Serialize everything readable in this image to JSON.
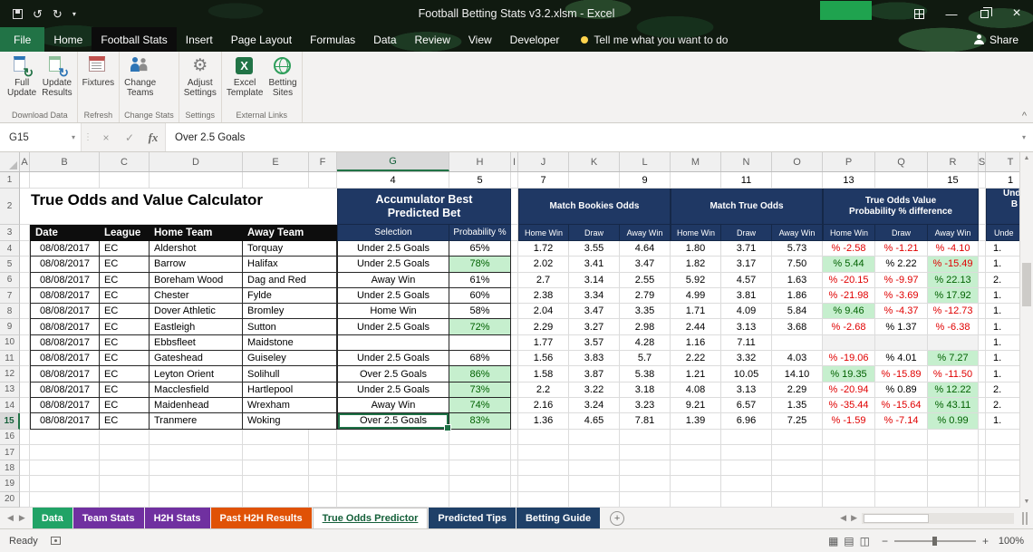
{
  "titlebar": {
    "title": "Football Betting Stats v3.2.xlsm - Excel"
  },
  "ribbon_tabs": [
    {
      "label": "File",
      "type": "file"
    },
    {
      "label": "Home"
    },
    {
      "label": "Football Stats",
      "type": "active"
    },
    {
      "label": "Insert"
    },
    {
      "label": "Page Layout"
    },
    {
      "label": "Formulas"
    },
    {
      "label": "Data"
    },
    {
      "label": "Review"
    },
    {
      "label": "View"
    },
    {
      "label": "Developer"
    }
  ],
  "tellme": "Tell me what you want to do",
  "share": "Share",
  "ribbon": {
    "groups": [
      {
        "label": "Download Data",
        "buttons": [
          {
            "label": "Full\nUpdate",
            "icon": "refresh-sheet-icon"
          },
          {
            "label": "Update\nResults",
            "icon": "refresh-results-icon"
          }
        ]
      },
      {
        "label": "Refresh",
        "buttons": [
          {
            "label": "Fixtures",
            "icon": "calendar-icon"
          }
        ]
      },
      {
        "label": "Change Stats",
        "buttons": [
          {
            "label": "Change\nTeams",
            "icon": "people-icon"
          }
        ]
      },
      {
        "label": "Settings",
        "buttons": [
          {
            "label": "Adjust\nSettings",
            "icon": "gear-icon"
          }
        ]
      },
      {
        "label": "External Links",
        "buttons": [
          {
            "label": "Excel\nTemplate",
            "icon": "excel-icon"
          },
          {
            "label": "Betting\nSites",
            "icon": "globe-icon"
          }
        ]
      }
    ]
  },
  "formula_bar": {
    "name_box": "G15",
    "content": "Over 2.5 Goals",
    "fx": "fx"
  },
  "grid": {
    "col_letters": [
      "A",
      "B",
      "C",
      "D",
      "E",
      "F",
      "G",
      "H",
      "I",
      "J",
      "K",
      "L",
      "M",
      "N",
      "O",
      "P",
      "Q",
      "R",
      "S",
      "T"
    ],
    "row_count": 20,
    "title": "True Odds and Value Calculator",
    "row1": {
      "G": "4",
      "H": "5",
      "J": "7",
      "L": "9",
      "N": "11",
      "P": "13",
      "R": "15",
      "T": "1"
    },
    "sections": {
      "accumulator": [
        "Accumulator Best",
        "Predicted Bet"
      ],
      "bookies": [
        "Match Bookies Odds"
      ],
      "true_odds": [
        "Match True Odds"
      ],
      "value": [
        "True Odds Value",
        "Probability % difference"
      ],
      "partial_right": [
        "Unde",
        "B"
      ]
    },
    "headers": {
      "date": "Date",
      "league": "League",
      "home": "Home Team",
      "away": "Away Team",
      "selection": "Selection",
      "probability": "Probability %",
      "home_win": "Home Win",
      "draw": "Draw",
      "away_win": "Away Win",
      "partial_right": "Unde"
    },
    "rows": [
      {
        "n": 4,
        "date": "08/08/2017",
        "league": "EC",
        "home": "Aldershot",
        "away": "Torquay",
        "selection": "Under 2.5 Goals",
        "prob": "65%",
        "prob_green": false,
        "bookies": [
          "1.72",
          "3.55",
          "4.64"
        ],
        "true_odds": [
          "1.80",
          "3.71",
          "5.73"
        ],
        "values": [
          {
            "t": "% -2.58",
            "s": "neg"
          },
          {
            "t": "% -1.21",
            "s": "neg"
          },
          {
            "t": "% -4.10",
            "s": "neg"
          }
        ],
        "extra": "1."
      },
      {
        "n": 5,
        "date": "08/08/2017",
        "league": "EC",
        "home": "Barrow",
        "away": "Halifax",
        "selection": "Under 2.5 Goals",
        "prob": "78%",
        "prob_green": true,
        "bookies": [
          "2.02",
          "3.41",
          "3.47"
        ],
        "true_odds": [
          "1.82",
          "3.17",
          "7.50"
        ],
        "values": [
          {
            "t": "% 5.44",
            "s": "gpos"
          },
          {
            "t": "% 2.22",
            "s": "pos"
          },
          {
            "t": "% -15.49",
            "s": "gneg"
          }
        ],
        "extra": "1."
      },
      {
        "n": 6,
        "date": "08/08/2017",
        "league": "EC",
        "home": "Boreham Wood",
        "away": "Dag and Red",
        "selection": "Away Win",
        "prob": "61%",
        "prob_green": false,
        "bookies": [
          "2.7",
          "3.14",
          "2.55"
        ],
        "true_odds": [
          "5.92",
          "4.57",
          "1.63"
        ],
        "values": [
          {
            "t": "% -20.15",
            "s": "neg"
          },
          {
            "t": "% -9.97",
            "s": "neg"
          },
          {
            "t": "% 22.13",
            "s": "gpos"
          }
        ],
        "extra": "2."
      },
      {
        "n": 7,
        "date": "08/08/2017",
        "league": "EC",
        "home": "Chester",
        "away": "Fylde",
        "selection": "Under 2.5 Goals",
        "prob": "60%",
        "prob_green": false,
        "bookies": [
          "2.38",
          "3.34",
          "2.79"
        ],
        "true_odds": [
          "4.99",
          "3.81",
          "1.86"
        ],
        "values": [
          {
            "t": "% -21.98",
            "s": "neg"
          },
          {
            "t": "% -3.69",
            "s": "neg"
          },
          {
            "t": "% 17.92",
            "s": "gpos"
          }
        ],
        "extra": "1."
      },
      {
        "n": 8,
        "date": "08/08/2017",
        "league": "EC",
        "home": "Dover Athletic",
        "away": "Bromley",
        "selection": "Home Win",
        "prob": "58%",
        "prob_green": false,
        "bookies": [
          "2.04",
          "3.47",
          "3.35"
        ],
        "true_odds": [
          "1.71",
          "4.09",
          "5.84"
        ],
        "values": [
          {
            "t": "% 9.46",
            "s": "gpos"
          },
          {
            "t": "% -4.37",
            "s": "neg"
          },
          {
            "t": "% -12.73",
            "s": "neg"
          }
        ],
        "extra": "1."
      },
      {
        "n": 9,
        "date": "08/08/2017",
        "league": "EC",
        "home": "Eastleigh",
        "away": "Sutton",
        "selection": "Under 2.5 Goals",
        "prob": "72%",
        "prob_green": true,
        "bookies": [
          "2.29",
          "3.27",
          "2.98"
        ],
        "true_odds": [
          "2.44",
          "3.13",
          "3.68"
        ],
        "values": [
          {
            "t": "% -2.68",
            "s": "neg"
          },
          {
            "t": "% 1.37",
            "s": "pos"
          },
          {
            "t": "% -6.38",
            "s": "neg"
          }
        ],
        "extra": "1."
      },
      {
        "n": 10,
        "date": "08/08/2017",
        "league": "EC",
        "home": "Ebbsfleet",
        "away": "Maidstone",
        "selection": "",
        "prob": "",
        "prob_green": false,
        "bookies": [
          "1.77",
          "3.57",
          "4.28"
        ],
        "true_odds": [
          "1.16",
          "7.11",
          ""
        ],
        "values": [
          {
            "t": "",
            "s": "empty"
          },
          {
            "t": "",
            "s": "empty"
          },
          {
            "t": "",
            "s": "empty"
          }
        ],
        "extra": "1."
      },
      {
        "n": 11,
        "date": "08/08/2017",
        "league": "EC",
        "home": "Gateshead",
        "away": "Guiseley",
        "selection": "Under 2.5 Goals",
        "prob": "68%",
        "prob_green": false,
        "bookies": [
          "1.56",
          "3.83",
          "5.7"
        ],
        "true_odds": [
          "2.22",
          "3.32",
          "4.03"
        ],
        "values": [
          {
            "t": "% -19.06",
            "s": "neg"
          },
          {
            "t": "% 4.01",
            "s": "pos"
          },
          {
            "t": "% 7.27",
            "s": "gpos"
          }
        ],
        "extra": "1."
      },
      {
        "n": 12,
        "date": "08/08/2017",
        "league": "EC",
        "home": "Leyton Orient",
        "away": "Solihull",
        "selection": "Over 2.5 Goals",
        "prob": "86%",
        "prob_green": true,
        "bookies": [
          "1.58",
          "3.87",
          "5.38"
        ],
        "true_odds": [
          "1.21",
          "10.05",
          "14.10"
        ],
        "values": [
          {
            "t": "% 19.35",
            "s": "gpos"
          },
          {
            "t": "% -15.89",
            "s": "neg"
          },
          {
            "t": "% -11.50",
            "s": "neg"
          }
        ],
        "extra": "1."
      },
      {
        "n": 13,
        "date": "08/08/2017",
        "league": "EC",
        "home": "Macclesfield",
        "away": "Hartlepool",
        "selection": "Under 2.5 Goals",
        "prob": "73%",
        "prob_green": true,
        "bookies": [
          "2.2",
          "3.22",
          "3.18"
        ],
        "true_odds": [
          "4.08",
          "3.13",
          "2.29"
        ],
        "values": [
          {
            "t": "% -20.94",
            "s": "neg"
          },
          {
            "t": "% 0.89",
            "s": "pos"
          },
          {
            "t": "% 12.22",
            "s": "gpos"
          }
        ],
        "extra": "2."
      },
      {
        "n": 14,
        "date": "08/08/2017",
        "league": "EC",
        "home": "Maidenhead",
        "away": "Wrexham",
        "selection": "Away Win",
        "prob": "74%",
        "prob_green": true,
        "bookies": [
          "2.16",
          "3.24",
          "3.23"
        ],
        "true_odds": [
          "9.21",
          "6.57",
          "1.35"
        ],
        "values": [
          {
            "t": "% -35.44",
            "s": "neg"
          },
          {
            "t": "% -15.64",
            "s": "neg"
          },
          {
            "t": "% 43.11",
            "s": "gpos"
          }
        ],
        "extra": "2."
      },
      {
        "n": 15,
        "date": "08/08/2017",
        "league": "EC",
        "home": "Tranmere",
        "away": "Woking",
        "selection": "Over 2.5 Goals",
        "prob": "83%",
        "prob_green": true,
        "bookies": [
          "1.36",
          "4.65",
          "7.81"
        ],
        "true_odds": [
          "1.39",
          "6.96",
          "7.25"
        ],
        "values": [
          {
            "t": "% -1.59",
            "s": "neg"
          },
          {
            "t": "% -7.14",
            "s": "neg"
          },
          {
            "t": "% 0.99",
            "s": "gpos"
          }
        ],
        "extra": "1."
      }
    ],
    "selected_cell": {
      "ref": "G15",
      "content": "Over 2.5 Goals"
    }
  },
  "sheet_tabs": [
    {
      "label": "Data",
      "color": "#21a366"
    },
    {
      "label": "Team Stats",
      "color": "#7030a0"
    },
    {
      "label": "H2H Stats",
      "color": "#7030a0"
    },
    {
      "label": "Past H2H Results",
      "color": "#e05206"
    },
    {
      "label": "True Odds Predictor",
      "active": true
    },
    {
      "label": "Predicted Tips",
      "color": "#1f4068"
    },
    {
      "label": "Betting Guide",
      "color": "#1f4068"
    }
  ],
  "status_bar": {
    "ready": "Ready",
    "zoom": "100%"
  },
  "colors": {
    "accent_green": "#217346",
    "navy_header": "#1f3864",
    "black_header": "#0d0d0d",
    "green_fill": "#c6efce",
    "green_text": "#006100",
    "red_text": "#e00000",
    "tab_green": "#21a366",
    "tab_purple": "#7030a0",
    "tab_orange": "#e05206",
    "tab_navy": "#1f4068"
  },
  "icons": {
    "nav_left": "◀",
    "nav_right": "▶",
    "scroll_up": "▲",
    "scroll_down": "▼",
    "dropdown": "▾",
    "undo": "↺",
    "redo": "↻",
    "close": "×",
    "minimize": "—",
    "check": "✓",
    "cancel": "×",
    "add_sheet": "+",
    "collapse_ribbon": "^",
    "zoom_out": "−",
    "zoom_in": "+",
    "view_normal": "▦",
    "view_layout": "▤",
    "view_break": "◫",
    "refresh": "↻",
    "gear": "⚙",
    "grip": "⋮"
  }
}
